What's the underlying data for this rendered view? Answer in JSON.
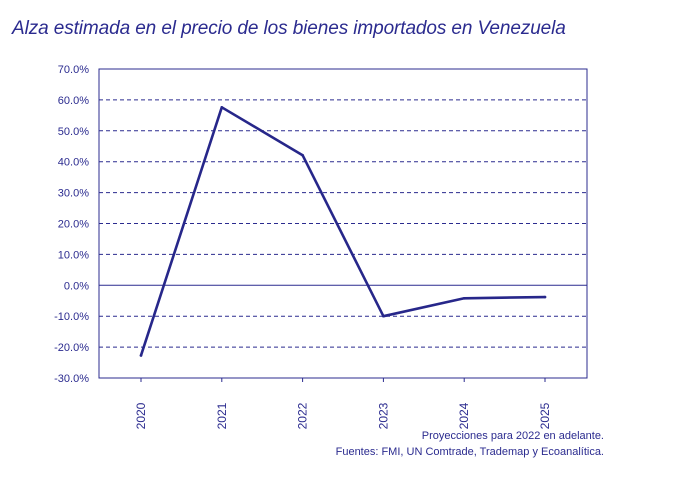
{
  "chart_data": {
    "type": "line",
    "title": "Alza estimada en el precio de los bienes importados en Venezuela",
    "xlabel": "",
    "ylabel": "",
    "x": [
      "2020",
      "2021",
      "2022",
      "2023",
      "2024",
      "2025"
    ],
    "series": [
      {
        "values": [
          -22.7,
          57.6,
          42.1,
          -10.0,
          -4.2,
          -3.8
        ]
      }
    ],
    "ylim": [
      -30,
      70
    ],
    "yticks": [
      70,
      60,
      50,
      40,
      30,
      20,
      10,
      0,
      -10,
      -20,
      -30
    ],
    "ytick_labels": [
      "70.0%",
      "60.0%",
      "50.0%",
      "40.0%",
      "30.0%",
      "20.0%",
      "10.0%",
      "0.0%",
      "-10.0%",
      "-20.0%",
      "-30.0%"
    ],
    "grid": true,
    "legend": "none",
    "colors": {
      "line": "#27278a",
      "grid": "#2b2b8f",
      "text": "#2b2b8f"
    }
  },
  "notes": {
    "line1": "Proyecciones para 2022 en adelante.",
    "line2": "Fuentes: FMI, UN Comtrade, Trademap y Ecoanalítica."
  }
}
